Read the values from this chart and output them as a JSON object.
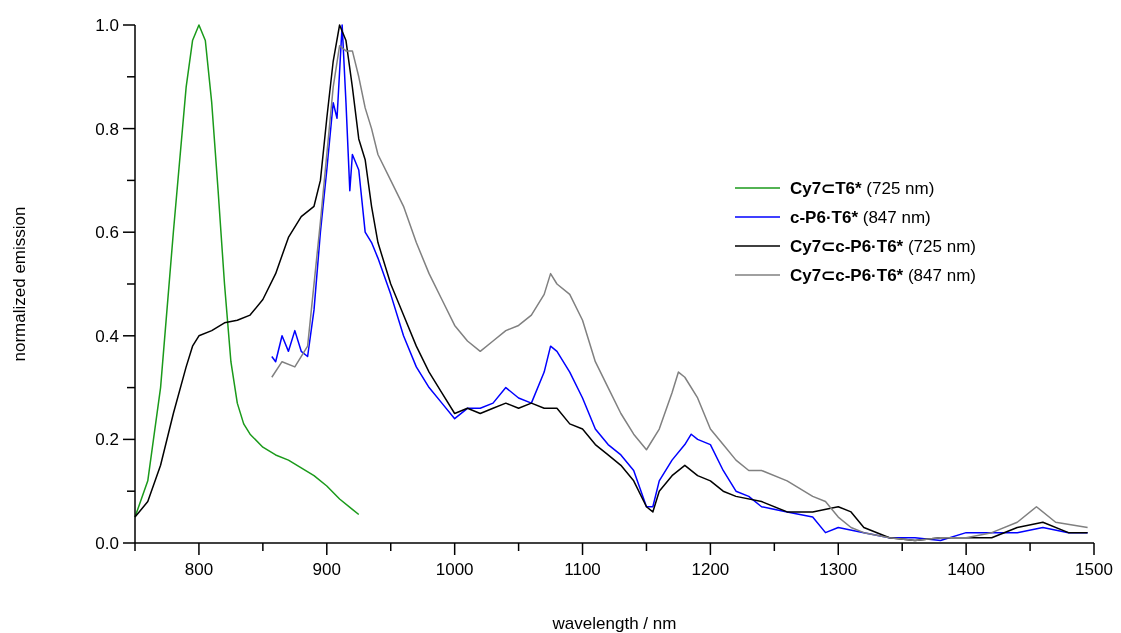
{
  "chart_data": {
    "type": "line",
    "xlabel": "wavelength / nm",
    "ylabel": "normalized emission",
    "xlim": [
      750,
      1500
    ],
    "ylim": [
      0,
      1.0
    ],
    "xticks": [
      {
        "value": 750,
        "label": null
      },
      800,
      {
        "value": 850,
        "label": null
      },
      900,
      {
        "value": 950,
        "label": null
      },
      1000,
      {
        "value": 1050,
        "label": null
      },
      1100,
      {
        "value": 1150,
        "label": null
      },
      1200,
      {
        "value": 1250,
        "label": null
      },
      1300,
      {
        "value": 1350,
        "label": null
      },
      1400,
      {
        "value": 1450,
        "label": null
      },
      1500
    ],
    "yticks": [
      {
        "value": 0,
        "label": "0.0"
      },
      {
        "value": 0.1,
        "label": null
      },
      {
        "value": 0.2,
        "label": "0.2"
      },
      {
        "value": 0.3,
        "label": null
      },
      {
        "value": 0.4,
        "label": "0.4"
      },
      {
        "value": 0.5,
        "label": null
      },
      {
        "value": 0.6,
        "label": "0.6"
      },
      {
        "value": 0.7,
        "label": null
      },
      {
        "value": 0.8,
        "label": "0.8"
      },
      {
        "value": 0.9,
        "label": null
      },
      {
        "value": 1.0,
        "label": "1.0"
      }
    ],
    "legend": "right",
    "marker": "none",
    "line_style": "solid",
    "series": [
      {
        "name": "Cy7⊂T6* (725 nm)",
        "color": "#1a9a1a",
        "x": [
          750,
          760,
          770,
          780,
          790,
          795,
          800,
          805,
          810,
          815,
          820,
          825,
          830,
          835,
          840,
          850,
          860,
          870,
          880,
          890,
          900,
          910,
          920,
          925
        ],
        "values": [
          0.05,
          0.12,
          0.3,
          0.6,
          0.88,
          0.97,
          1.0,
          0.97,
          0.85,
          0.68,
          0.5,
          0.35,
          0.27,
          0.23,
          0.21,
          0.185,
          0.17,
          0.16,
          0.145,
          0.13,
          0.11,
          0.085,
          0.065,
          0.055
        ]
      },
      {
        "name": "c-P6·T6* (847 nm)",
        "color": "#0000ff",
        "x": [
          857,
          860,
          865,
          870,
          875,
          880,
          885,
          890,
          895,
          900,
          905,
          908,
          912,
          915,
          918,
          920,
          925,
          930,
          935,
          940,
          950,
          960,
          970,
          980,
          990,
          1000,
          1010,
          1020,
          1030,
          1040,
          1050,
          1060,
          1070,
          1075,
          1080,
          1090,
          1100,
          1110,
          1120,
          1130,
          1140,
          1150,
          1155,
          1160,
          1170,
          1180,
          1185,
          1190,
          1200,
          1210,
          1220,
          1230,
          1240,
          1260,
          1280,
          1290,
          1300,
          1320,
          1340,
          1360,
          1380,
          1400,
          1420,
          1440,
          1460,
          1480,
          1495
        ],
        "values": [
          0.36,
          0.35,
          0.4,
          0.37,
          0.41,
          0.37,
          0.36,
          0.45,
          0.6,
          0.72,
          0.85,
          0.82,
          1.0,
          0.85,
          0.68,
          0.75,
          0.72,
          0.6,
          0.58,
          0.55,
          0.48,
          0.4,
          0.34,
          0.3,
          0.27,
          0.24,
          0.26,
          0.26,
          0.27,
          0.3,
          0.28,
          0.27,
          0.33,
          0.38,
          0.37,
          0.33,
          0.28,
          0.22,
          0.19,
          0.17,
          0.14,
          0.07,
          0.07,
          0.12,
          0.16,
          0.19,
          0.21,
          0.2,
          0.19,
          0.14,
          0.1,
          0.09,
          0.07,
          0.06,
          0.05,
          0.02,
          0.03,
          0.02,
          0.01,
          0.01,
          0.005,
          0.02,
          0.02,
          0.02,
          0.03,
          0.02,
          0.02
        ]
      },
      {
        "name": "Cy7⊂c-P6·T6* (725 nm)",
        "color": "#000000",
        "x": [
          750,
          760,
          770,
          780,
          790,
          795,
          800,
          810,
          820,
          830,
          840,
          850,
          860,
          870,
          880,
          890,
          895,
          900,
          905,
          910,
          915,
          920,
          925,
          930,
          935,
          940,
          950,
          960,
          970,
          980,
          990,
          1000,
          1010,
          1020,
          1030,
          1040,
          1050,
          1060,
          1070,
          1080,
          1090,
          1100,
          1110,
          1120,
          1130,
          1140,
          1150,
          1155,
          1160,
          1170,
          1180,
          1190,
          1200,
          1210,
          1220,
          1240,
          1260,
          1280,
          1300,
          1310,
          1320,
          1340,
          1360,
          1380,
          1400,
          1420,
          1440,
          1460,
          1480,
          1495
        ],
        "values": [
          0.05,
          0.08,
          0.15,
          0.25,
          0.34,
          0.38,
          0.4,
          0.41,
          0.425,
          0.43,
          0.44,
          0.47,
          0.52,
          0.59,
          0.63,
          0.65,
          0.7,
          0.82,
          0.93,
          1.0,
          0.97,
          0.88,
          0.78,
          0.74,
          0.65,
          0.58,
          0.5,
          0.44,
          0.38,
          0.33,
          0.29,
          0.25,
          0.26,
          0.25,
          0.26,
          0.27,
          0.26,
          0.27,
          0.26,
          0.26,
          0.23,
          0.22,
          0.19,
          0.17,
          0.15,
          0.12,
          0.07,
          0.06,
          0.1,
          0.13,
          0.15,
          0.13,
          0.12,
          0.1,
          0.09,
          0.08,
          0.06,
          0.06,
          0.07,
          0.06,
          0.03,
          0.01,
          0.005,
          0.01,
          0.01,
          0.01,
          0.03,
          0.04,
          0.02,
          0.02
        ]
      },
      {
        "name": "Cy7⊂c-P6·T6* (847 nm)",
        "color": "#808080",
        "x": [
          857,
          865,
          875,
          885,
          895,
          905,
          910,
          915,
          920,
          925,
          930,
          935,
          940,
          950,
          960,
          970,
          980,
          990,
          1000,
          1010,
          1020,
          1030,
          1040,
          1050,
          1060,
          1070,
          1075,
          1080,
          1090,
          1100,
          1110,
          1120,
          1130,
          1140,
          1150,
          1160,
          1170,
          1175,
          1180,
          1190,
          1200,
          1210,
          1220,
          1230,
          1240,
          1260,
          1280,
          1290,
          1300,
          1310,
          1320,
          1340,
          1360,
          1380,
          1400,
          1420,
          1440,
          1455,
          1470,
          1495
        ],
        "values": [
          0.32,
          0.35,
          0.34,
          0.38,
          0.62,
          0.88,
          0.96,
          0.95,
          0.95,
          0.9,
          0.84,
          0.8,
          0.75,
          0.7,
          0.65,
          0.58,
          0.52,
          0.47,
          0.42,
          0.39,
          0.37,
          0.39,
          0.41,
          0.42,
          0.44,
          0.48,
          0.52,
          0.5,
          0.48,
          0.43,
          0.35,
          0.3,
          0.25,
          0.21,
          0.18,
          0.22,
          0.29,
          0.33,
          0.32,
          0.28,
          0.22,
          0.19,
          0.16,
          0.14,
          0.14,
          0.12,
          0.09,
          0.08,
          0.05,
          0.03,
          0.02,
          0.01,
          0.005,
          0.01,
          0.01,
          0.02,
          0.04,
          0.07,
          0.04,
          0.03
        ]
      }
    ]
  }
}
